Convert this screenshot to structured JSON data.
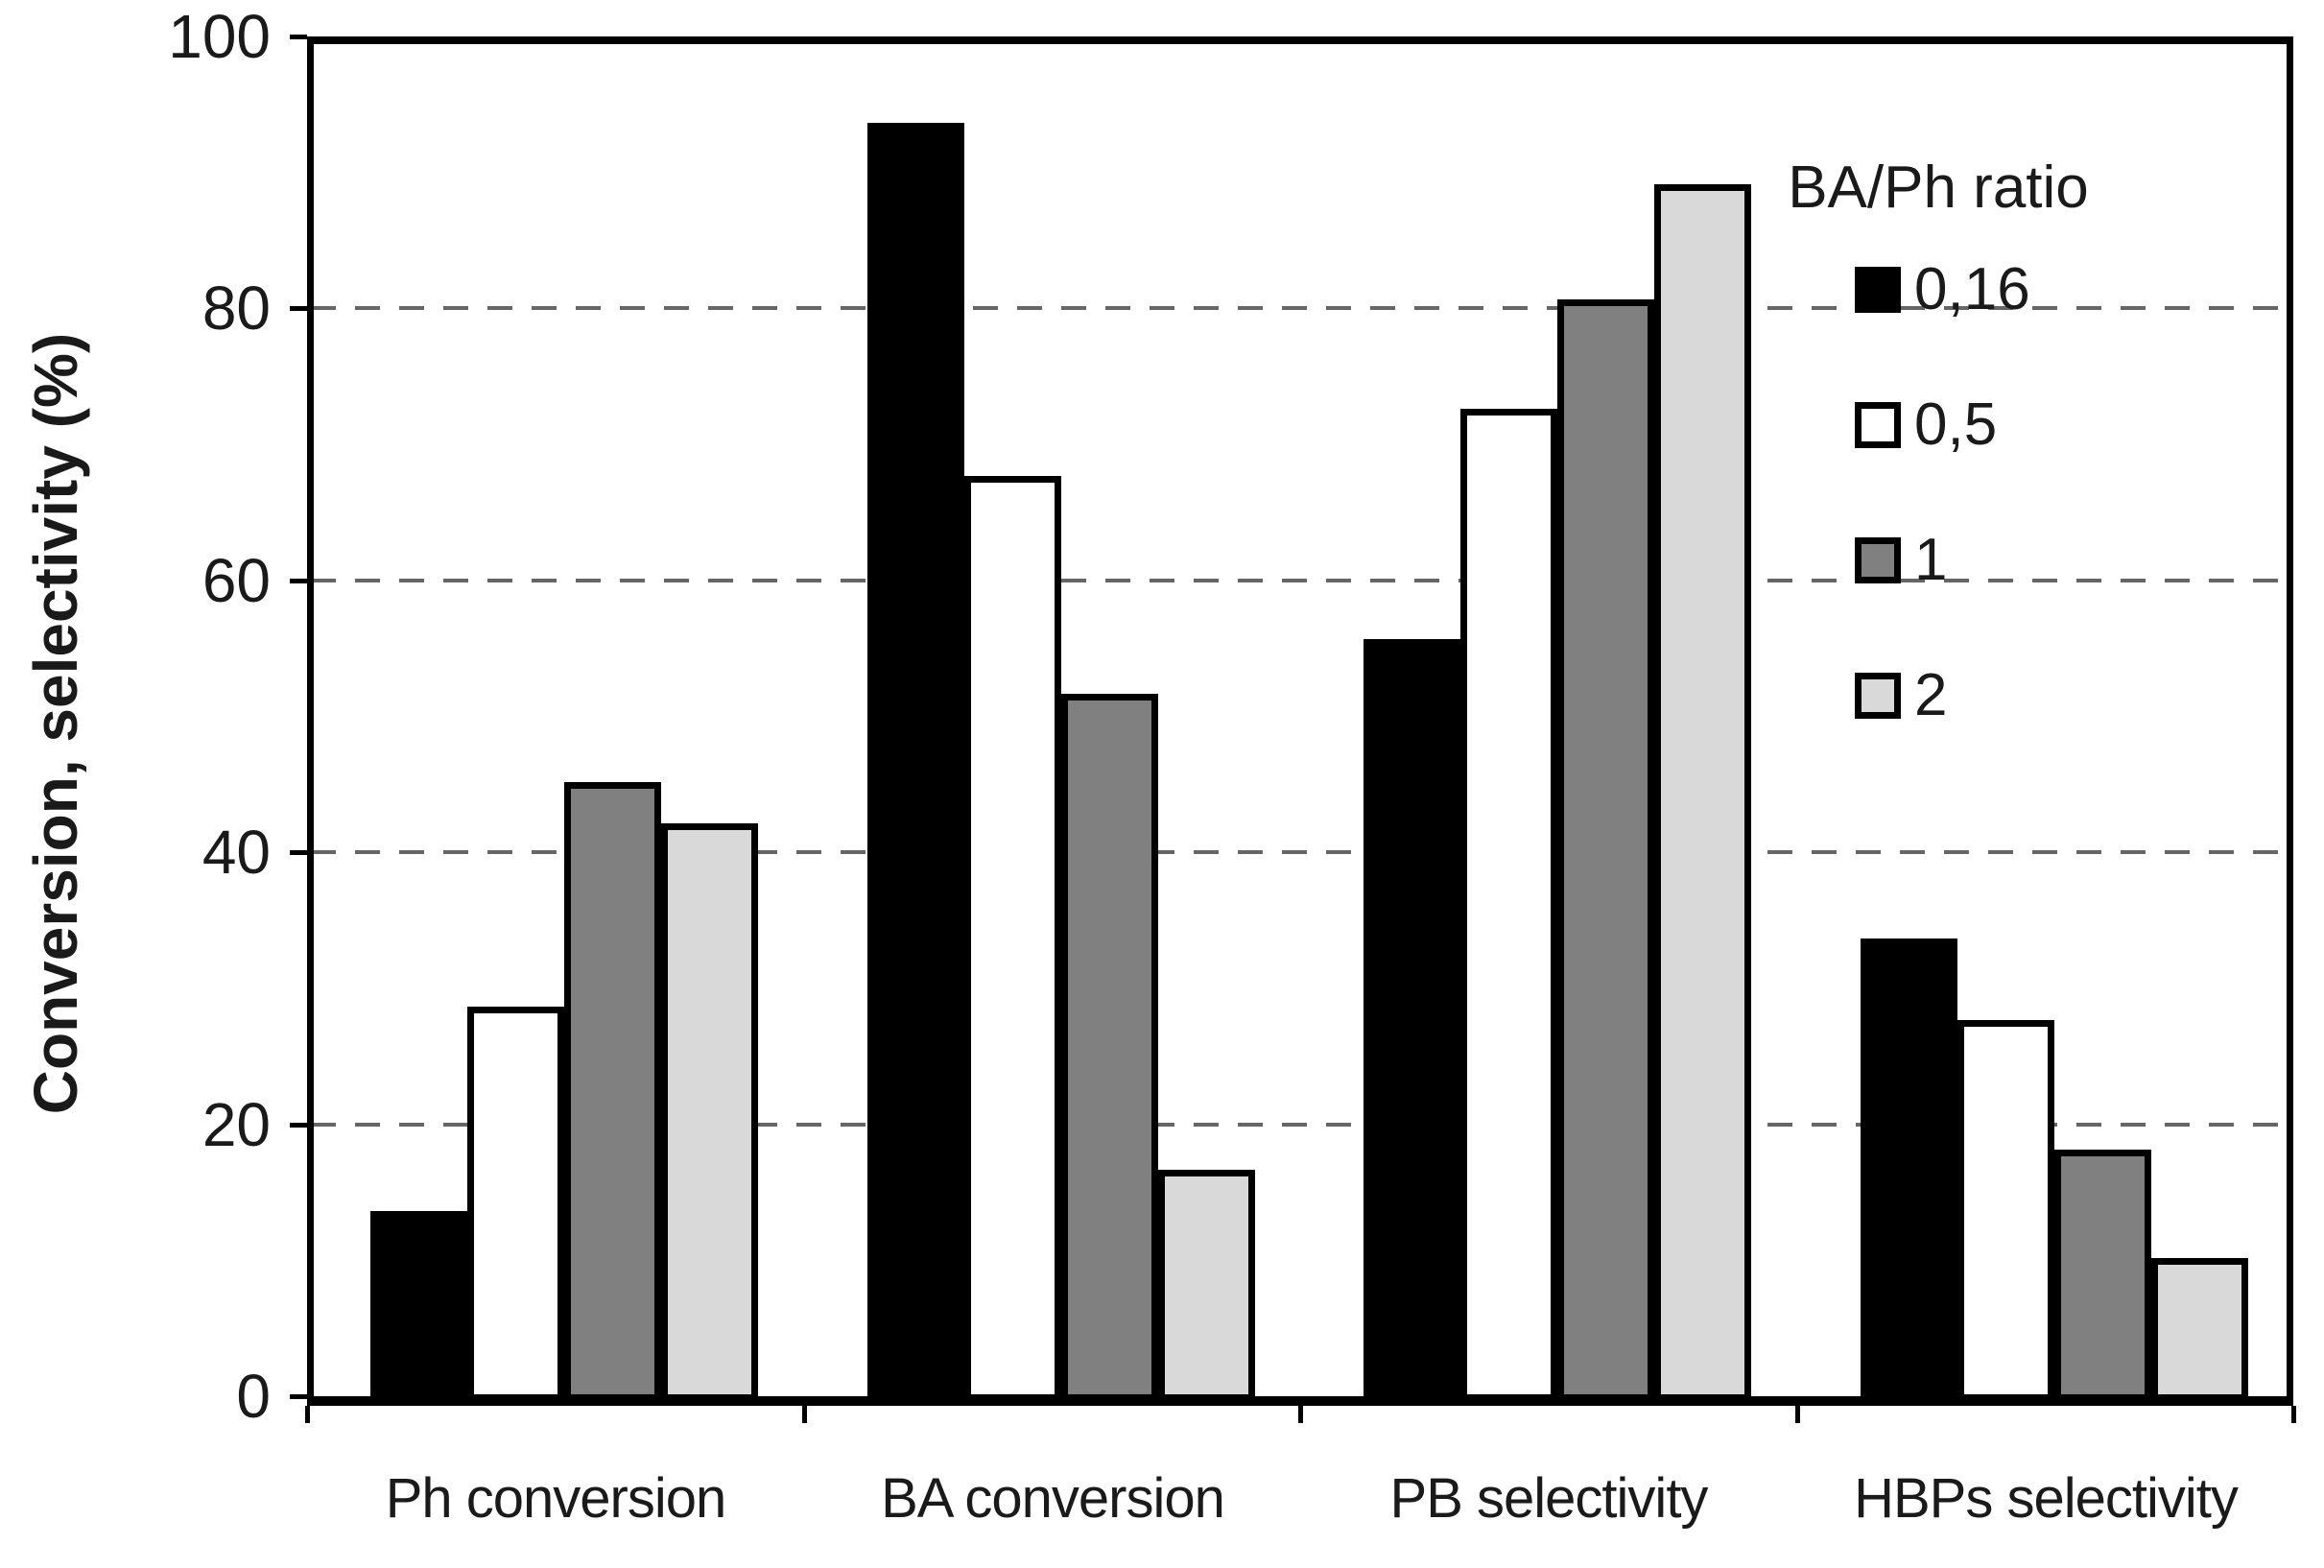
{
  "figure": {
    "background": "#ffffff",
    "text_color": "#1a1a1a"
  },
  "y_axis": {
    "label": "Conversion, selectivity (%)",
    "tick_labels": [
      "0",
      "20",
      "40",
      "60",
      "80",
      "100"
    ],
    "tick_values": [
      0,
      20,
      40,
      60,
      80,
      100
    ]
  },
  "legend": {
    "title": "BA/Ph ratio",
    "items": [
      {
        "label": "0,16",
        "color": "#000000"
      },
      {
        "label": "0,5",
        "color": "#ffffff"
      },
      {
        "label": "1",
        "color": "#808080"
      },
      {
        "label": "2",
        "color": "#d9d9d9"
      }
    ]
  },
  "chart_data": {
    "type": "bar",
    "title": "",
    "xlabel": "",
    "ylabel": "Conversion, selectivity (%)",
    "ylim": [
      0,
      100
    ],
    "grid": "dashed horizontal at 20,40,60,80",
    "legend_position": "upper right",
    "categories": [
      "Ph conversion",
      "BA conversion",
      "PB selectivity",
      "HBPs selectivity"
    ],
    "series": [
      {
        "name": "0,16",
        "color": "#000000",
        "values": [
          14,
          94,
          56,
          34
        ]
      },
      {
        "name": "0,5",
        "color": "#ffffff",
        "values": [
          29,
          68,
          73,
          28
        ]
      },
      {
        "name": "1",
        "color": "#808080",
        "values": [
          45.5,
          52,
          81,
          18.5
        ]
      },
      {
        "name": "2",
        "color": "#d9d9d9",
        "values": [
          42.5,
          17,
          89.5,
          10.5
        ]
      }
    ]
  }
}
